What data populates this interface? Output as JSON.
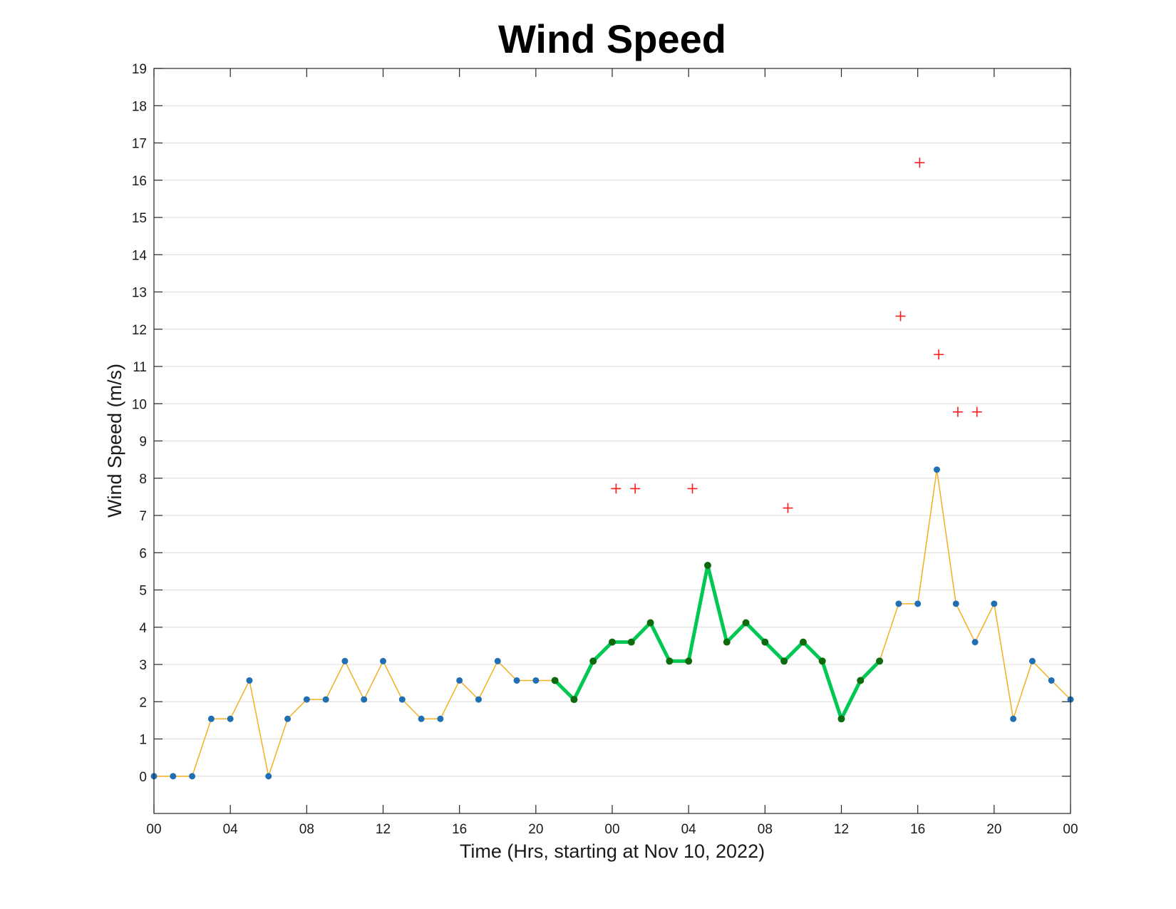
{
  "chart_data": {
    "type": "line",
    "title": "Wind Speed",
    "xlabel": "Time (Hrs, starting at Nov 10, 2022)",
    "ylabel": "Wind Speed (m/s)",
    "xlim": [
      0,
      48
    ],
    "ylim": [
      -1,
      19
    ],
    "x_ticks": [
      0,
      4,
      8,
      12,
      16,
      20,
      24,
      28,
      32,
      36,
      40,
      44,
      48
    ],
    "x_tick_labels": [
      "00",
      "04",
      "08",
      "12",
      "16",
      "20",
      "00",
      "04",
      "08",
      "12",
      "16",
      "20",
      "00"
    ],
    "y_ticks": [
      0,
      1,
      2,
      3,
      4,
      5,
      6,
      7,
      8,
      9,
      10,
      11,
      12,
      13,
      14,
      15,
      16,
      17,
      18,
      19
    ],
    "grid": "horizontal",
    "colors": {
      "series_line": "#f2b021",
      "marker": "#1f6fb5",
      "highlight_line": "#00c853",
      "highlight_marker": "#0e6a0e",
      "gust": "#ff1a1a",
      "grid": "#dcdcdc"
    },
    "series": [
      {
        "style": "thin-line-with-dots",
        "x": [
          0,
          1,
          2,
          3,
          4,
          5,
          6,
          7,
          8,
          9,
          10,
          11,
          12,
          13,
          14,
          15,
          16,
          17,
          18,
          19,
          20,
          21,
          22,
          23,
          24,
          25,
          26,
          27,
          28,
          29,
          30,
          31,
          32,
          33,
          34,
          35,
          36,
          37,
          38,
          39,
          40,
          41,
          42,
          43,
          44,
          45,
          46,
          47,
          48
        ],
        "y": [
          0,
          0,
          0,
          1.54,
          1.54,
          2.57,
          0,
          1.54,
          2.06,
          2.06,
          3.09,
          2.06,
          3.09,
          2.06,
          1.54,
          1.54,
          2.57,
          2.06,
          3.09,
          2.57,
          2.57,
          2.57,
          2.06,
          3.09,
          3.6,
          3.6,
          4.12,
          3.09,
          3.09,
          5.66,
          3.6,
          4.12,
          3.6,
          3.09,
          3.6,
          3.09,
          1.54,
          2.57,
          3.09,
          4.63,
          4.63,
          8.23,
          4.63,
          3.6,
          4.63,
          1.54,
          3.09,
          2.57,
          2.06
        ]
      },
      {
        "style": "thick-line-highlight",
        "x": [
          21,
          22,
          23,
          24,
          25,
          26,
          27,
          28,
          29,
          30,
          31,
          32,
          33,
          34,
          35,
          36,
          37,
          38
        ],
        "y": [
          2.57,
          2.06,
          3.09,
          3.6,
          3.6,
          4.12,
          3.09,
          3.09,
          5.66,
          3.6,
          4.12,
          3.6,
          3.09,
          3.6,
          3.09,
          1.54,
          2.57,
          3.09
        ]
      },
      {
        "style": "plus-markers",
        "x": [
          24.2,
          25.2,
          28.2,
          33.2,
          39.1,
          40.1,
          41.1,
          42.1,
          43.1
        ],
        "y": [
          7.72,
          7.72,
          7.72,
          7.2,
          12.35,
          16.47,
          11.32,
          9.78,
          9.78
        ]
      }
    ]
  }
}
